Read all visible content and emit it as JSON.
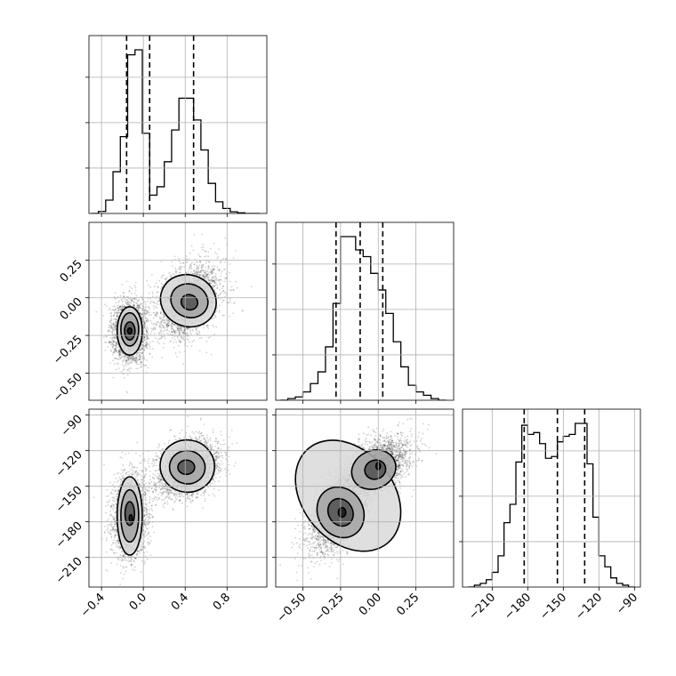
{
  "chart_data": {
    "type": "corner",
    "title": "",
    "parameters": [
      {
        "name": "",
        "range": [
          -0.52,
          1.18
        ],
        "ticks": [
          -0.4,
          0.0,
          0.4,
          0.8
        ],
        "tick_labels": [
          "−0.4",
          "0.0",
          "0.4",
          "0.8"
        ]
      },
      {
        "name": "",
        "range": [
          -0.68,
          0.5
        ],
        "ticks": [
          -0.5,
          -0.25,
          0.0,
          0.25
        ],
        "tick_labels": [
          "−0.50",
          "−0.25",
          "0.00",
          "0.25"
        ]
      },
      {
        "name": "",
        "range": [
          -235,
          -85
        ],
        "ticks": [
          -210,
          -180,
          -150,
          -120,
          -90
        ],
        "tick_labels": [
          "−210",
          "−180",
          "−150",
          "−120",
          "−90"
        ]
      }
    ],
    "histograms": [
      {
        "param": 0,
        "bin_edges": [
          -0.5,
          -0.43,
          -0.36,
          -0.29,
          -0.22,
          -0.15,
          -0.08,
          -0.01,
          0.06,
          0.13,
          0.2,
          0.27,
          0.34,
          0.41,
          0.48,
          0.55,
          0.62,
          0.69,
          0.76,
          0.83,
          0.9,
          0.97,
          1.04,
          1.11
        ],
        "counts": [
          0.0,
          0.012,
          0.08,
          0.25,
          0.46,
          0.95,
          0.98,
          0.48,
          0.11,
          0.16,
          0.31,
          0.5,
          0.69,
          0.69,
          0.56,
          0.38,
          0.18,
          0.07,
          0.03,
          0.01,
          0.004,
          0.0,
          0.0
        ],
        "quantiles": [
          -0.16,
          0.06,
          0.48
        ]
      },
      {
        "param": 1,
        "bin_edges": [
          -0.65,
          -0.6,
          -0.55,
          -0.5,
          -0.45,
          -0.4,
          -0.35,
          -0.3,
          -0.25,
          -0.2,
          -0.15,
          -0.1,
          -0.05,
          0.0,
          0.05,
          0.1,
          0.15,
          0.2,
          0.25,
          0.3,
          0.35,
          0.4,
          0.45
        ],
        "counts": [
          0.0,
          0.01,
          0.02,
          0.05,
          0.1,
          0.17,
          0.32,
          0.58,
          0.98,
          0.98,
          0.9,
          0.86,
          0.76,
          0.66,
          0.52,
          0.35,
          0.2,
          0.09,
          0.05,
          0.03,
          0.01,
          0.0
        ],
        "quantiles": [
          -0.28,
          -0.12,
          0.03
        ]
      },
      {
        "param": 2,
        "bin_edges": [
          -230,
          -225,
          -220,
          -215,
          -210,
          -205,
          -200,
          -195,
          -190,
          -185,
          -180,
          -175,
          -170,
          -165,
          -160,
          -155,
          -150,
          -145,
          -140,
          -135,
          -130,
          -125,
          -120,
          -115,
          -110,
          -105,
          -100,
          -95,
          -90
        ],
        "counts": [
          0.0,
          0.01,
          0.02,
          0.04,
          0.08,
          0.17,
          0.35,
          0.45,
          0.68,
          0.88,
          0.83,
          0.84,
          0.78,
          0.7,
          0.71,
          0.79,
          0.82,
          0.83,
          0.89,
          0.89,
          0.67,
          0.38,
          0.17,
          0.11,
          0.05,
          0.02,
          0.01,
          0.0
        ],
        "quantiles": [
          -183,
          -155,
          -132
        ]
      }
    ],
    "panels_2d": [
      {
        "x_param": 0,
        "y_param": 1,
        "components": [
          {
            "mean": [
              -0.13,
              -0.22
            ],
            "std": [
              0.08,
              0.1
            ],
            "rho": 0.05,
            "n": 2600
          },
          {
            "mean": [
              0.44,
              -0.02
            ],
            "std": [
              0.15,
              0.12
            ],
            "rho": 0.35,
            "n": 2600
          }
        ],
        "contour_levels": [
          {
            "ellipses": [
              {
                "cx": -0.13,
                "cy": -0.22,
                "rx": 0.12,
                "ry": 0.16,
                "angle": 0
              },
              {
                "cx": 0.43,
                "cy": -0.02,
                "rx": 0.27,
                "ry": 0.17,
                "angle": 25
              }
            ]
          },
          {
            "ellipses": [
              {
                "cx": -0.13,
                "cy": -0.21,
                "rx": 0.085,
                "ry": 0.11,
                "angle": 0
              },
              {
                "cx": 0.44,
                "cy": -0.02,
                "rx": 0.18,
                "ry": 0.11,
                "angle": 22
              }
            ]
          },
          {
            "ellipses": [
              {
                "cx": -0.13,
                "cy": -0.22,
                "rx": 0.05,
                "ry": 0.06,
                "angle": 0
              },
              {
                "cx": 0.44,
                "cy": -0.03,
                "rx": 0.08,
                "ry": 0.05,
                "angle": 20
              }
            ]
          },
          {
            "ellipses": [
              {
                "cx": -0.13,
                "cy": -0.22,
                "rx": 0.02,
                "ry": 0.02,
                "angle": 0
              }
            ]
          }
        ]
      },
      {
        "x_param": 0,
        "y_param": 2,
        "components": [
          {
            "mean": [
              -0.13,
              -175
            ],
            "std": [
              0.08,
              17
            ],
            "rho": 0.05,
            "n": 2600
          },
          {
            "mean": [
              0.42,
              -135
            ],
            "std": [
              0.15,
              12
            ],
            "rho": 0.3,
            "n": 2600
          }
        ],
        "contour_levels": [
          {
            "ellipses": [
              {
                "cx": -0.13,
                "cy": -175,
                "rx": 0.12,
                "ry": 33,
                "angle": 0
              },
              {
                "cx": 0.42,
                "cy": -133,
                "rx": 0.26,
                "ry": 22,
                "angle": 10
              }
            ]
          },
          {
            "ellipses": [
              {
                "cx": -0.13,
                "cy": -175,
                "rx": 0.085,
                "ry": 22,
                "angle": 0
              },
              {
                "cx": 0.42,
                "cy": -134,
                "rx": 0.17,
                "ry": 14,
                "angle": 8
              }
            ]
          },
          {
            "ellipses": [
              {
                "cx": -0.13,
                "cy": -173,
                "rx": 0.045,
                "ry": 10,
                "angle": 0
              },
              {
                "cx": 0.41,
                "cy": -134,
                "rx": 0.08,
                "ry": 6,
                "angle": 0
              }
            ]
          },
          {
            "ellipses": [
              {
                "cx": -0.12,
                "cy": -177,
                "rx": 0.015,
                "ry": 3,
                "angle": 0
              }
            ]
          }
        ]
      },
      {
        "x_param": 1,
        "y_param": 2,
        "components": [
          {
            "mean": [
              -0.26,
              -172
            ],
            "std": [
              0.1,
              17
            ],
            "rho": 0.55,
            "n": 2600
          },
          {
            "mean": [
              -0.02,
              -135
            ],
            "std": [
              0.12,
              13
            ],
            "rho": 0.5,
            "n": 2600
          }
        ],
        "contour_levels": [
          {
            "ellipses": [
              {
                "cx": -0.2,
                "cy": -158,
                "rx": 0.3,
                "ry": 52,
                "angle": -40
              }
            ]
          },
          {
            "ellipses": [
              {
                "cx": -0.25,
                "cy": -172,
                "rx": 0.15,
                "ry": 22,
                "angle": -30
              },
              {
                "cx": -0.03,
                "cy": -136,
                "rx": 0.15,
                "ry": 16,
                "angle": -25
              }
            ]
          },
          {
            "ellipses": [
              {
                "cx": -0.25,
                "cy": -172,
                "rx": 0.08,
                "ry": 12,
                "angle": -30
              },
              {
                "cx": -0.02,
                "cy": -136,
                "rx": 0.07,
                "ry": 8,
                "angle": -20
              }
            ]
          },
          {
            "ellipses": [
              {
                "cx": -0.24,
                "cy": -172,
                "rx": 0.025,
                "ry": 4,
                "angle": 0
              },
              {
                "cx": 0.0,
                "cy": -133,
                "rx": 0.015,
                "ry": 3,
                "angle": 0
              }
            ]
          }
        ]
      }
    ],
    "grid": true,
    "colors": {
      "line": "#000000",
      "points": "#000000",
      "grid": "#b0b0b0"
    }
  }
}
